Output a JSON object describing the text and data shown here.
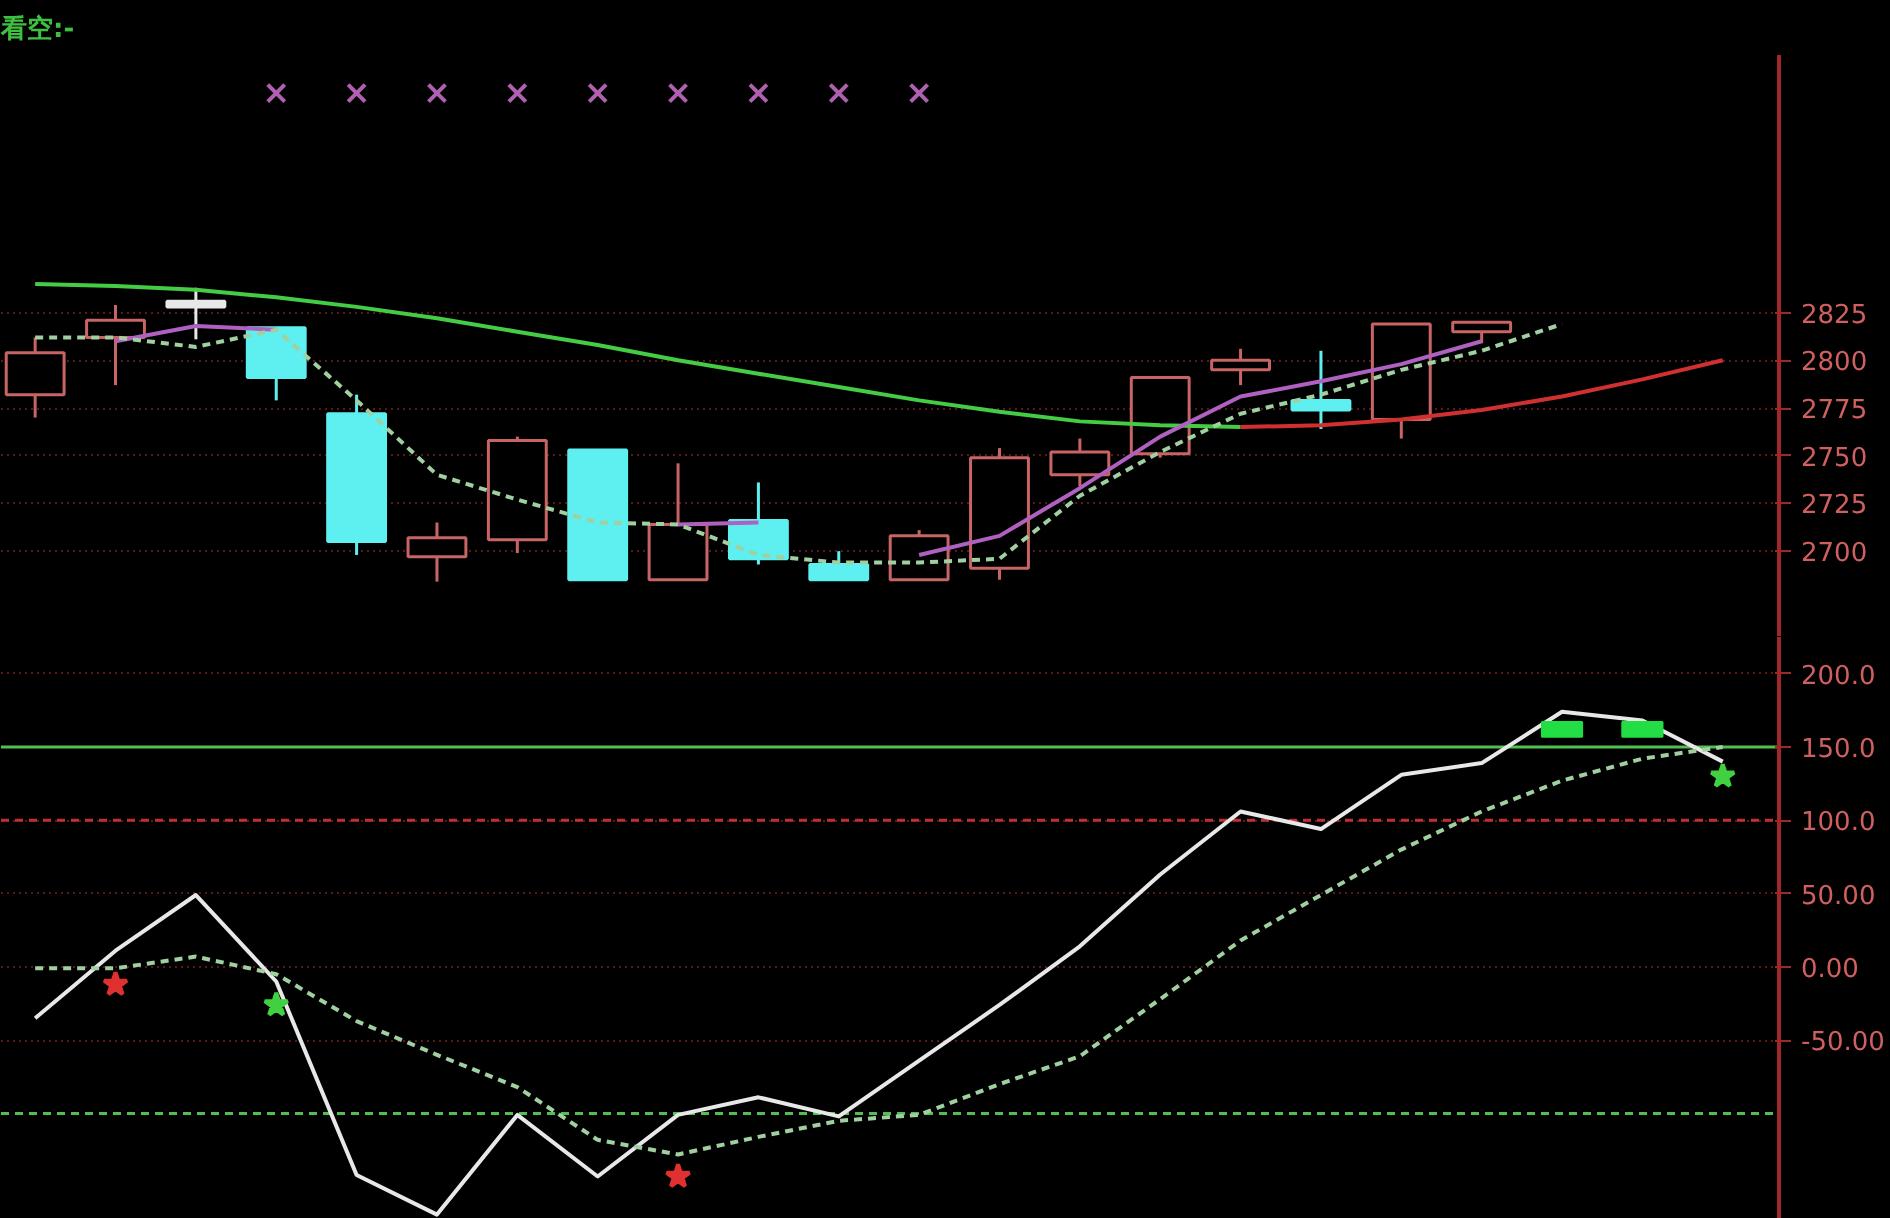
{
  "chart_data": [
    {
      "type": "candlestick",
      "title": "看空:-",
      "categories": [
        null,
        null,
        null,
        null,
        null,
        null,
        null,
        null,
        null,
        null,
        null,
        null,
        null,
        null,
        null,
        null,
        null,
        null,
        null,
        null,
        null,
        null
      ],
      "ohlc": [
        [
          2782,
          2812,
          2770,
          2804
        ],
        [
          2812,
          2829,
          2787,
          2821
        ],
        [
          2831,
          2838,
          2811,
          2828
        ],
        [
          2817,
          2817,
          2779,
          2791
        ],
        [
          2772,
          2782,
          2698,
          2705
        ],
        [
          2697,
          2715,
          2684,
          2707
        ],
        [
          2706,
          2760,
          2699,
          2758
        ],
        [
          2753,
          2753,
          2685,
          2685
        ],
        [
          2685,
          2746,
          2685,
          2714
        ],
        [
          2716,
          2736,
          2693,
          2696
        ],
        [
          2693,
          2700,
          2685,
          2685
        ],
        [
          2685,
          2711,
          2685,
          2708
        ],
        [
          2691,
          2754,
          2685,
          2749
        ],
        [
          2740,
          2759,
          2734,
          2752
        ],
        [
          2751,
          2791,
          2749,
          2791
        ],
        [
          2795,
          2806,
          2787,
          2800
        ],
        [
          2779,
          2805,
          2764,
          2774
        ],
        [
          2769,
          2819,
          2759,
          2819
        ],
        [
          2815,
          2820,
          2809,
          2820
        ],
        null,
        null,
        null
      ],
      "colors": [
        "#c86464",
        "#c86464",
        "#e8e8e8",
        "#5ef0f0",
        "#5ef0f0",
        "#c86464",
        "#c86464",
        "#5ef0f0",
        "#c86464",
        "#5ef0f0",
        "#5ef0f0",
        "#c86464",
        "#c86464",
        "#c86464",
        "#c86464",
        "#c86464",
        "#5ef0f0",
        "#c86464",
        "#c86464",
        null,
        null,
        null
      ],
      "series": [
        {
          "type": "line",
          "color": "#44cc44",
          "values": [
            2840,
            2839,
            2837,
            2833,
            2828,
            2822,
            2815,
            2808,
            2800,
            2793,
            2786,
            2779,
            2773,
            2768,
            2766,
            2765,
            null,
            null,
            null,
            null,
            null,
            null
          ]
        },
        {
          "type": "line",
          "color": "#d03030",
          "values": [
            null,
            null,
            null,
            null,
            null,
            null,
            null,
            null,
            null,
            null,
            null,
            null,
            null,
            null,
            null,
            2765,
            2766,
            2769,
            2774,
            2781,
            2790,
            2800
          ]
        },
        {
          "type": "line",
          "color": "#b060c0",
          "values": [
            null,
            2810,
            2818,
            2816,
            null,
            null,
            null,
            null,
            2714,
            2715,
            null,
            2698,
            2708,
            2733,
            2760,
            2781,
            2789,
            2798,
            2810,
            null,
            null,
            null
          ]
        },
        {
          "type": "line",
          "color": "#a0d0a0",
          "line_style": "dashed",
          "values": [
            2812,
            2812,
            2807,
            2816,
            2779,
            2740,
            2727,
            2715,
            2714,
            2698,
            2694,
            2694,
            2696,
            2729,
            2752,
            2772,
            2782,
            2795,
            2805,
            2819,
            null,
            null
          ]
        },
        {
          "type": "scatter",
          "marker": "cross",
          "color": "#b060b0",
          "values": [
            null,
            null,
            null,
            2940,
            2940,
            2940,
            2940,
            2940,
            2940,
            2940,
            2940,
            2940,
            null,
            null,
            null,
            null,
            null,
            null,
            null,
            null,
            null,
            null
          ]
        }
      ],
      "ylim": [
        2655,
        2960
      ],
      "yticks": [
        2700,
        2725,
        2750,
        2775,
        2800,
        2825
      ],
      "grid": "y"
    },
    {
      "type": "line",
      "categories": [
        null,
        null,
        null,
        null,
        null,
        null,
        null,
        null,
        null,
        null,
        null,
        null,
        null,
        null,
        null,
        null,
        null,
        null,
        null,
        null,
        null,
        null
      ],
      "series": [
        {
          "type": "line",
          "color": "#e8e8e8",
          "values": [
            -35,
            11,
            49,
            -10,
            -142,
            -169,
            -101,
            -143,
            -101,
            -89,
            -102,
            -64,
            -26,
            14,
            63,
            106,
            94,
            131,
            139,
            174,
            168,
            140
          ]
        },
        {
          "type": "line",
          "color": "#a0d0a0",
          "line_style": "dashed",
          "values": [
            -1,
            -1,
            7,
            -5,
            -37,
            -60,
            -82,
            -118,
            -128,
            -116,
            -105,
            -101,
            -80,
            -61,
            -22,
            18,
            49,
            80,
            106,
            127,
            142,
            150
          ]
        },
        {
          "type": "scatter",
          "marker": "star",
          "color": "#e03030",
          "values": [
            null,
            -12,
            null,
            null,
            null,
            null,
            null,
            null,
            -143,
            null,
            null,
            null,
            null,
            null,
            null,
            null,
            null,
            null,
            null,
            null,
            null,
            null
          ]
        },
        {
          "type": "scatter",
          "marker": "star",
          "color": "#40d040",
          "values": [
            null,
            null,
            null,
            -26,
            null,
            null,
            null,
            null,
            null,
            null,
            null,
            null,
            null,
            null,
            null,
            null,
            null,
            null,
            null,
            null,
            null,
            130
          ]
        },
        {
          "type": "bar",
          "color": "#22dd44",
          "base": [
            null,
            null,
            null,
            null,
            null,
            null,
            null,
            null,
            null,
            null,
            null,
            null,
            null,
            null,
            null,
            null,
            null,
            null,
            null,
            157,
            157,
            null
          ],
          "values": [
            null,
            null,
            null,
            null,
            null,
            null,
            null,
            null,
            null,
            null,
            null,
            null,
            null,
            null,
            null,
            null,
            null,
            null,
            null,
            10,
            10,
            null
          ]
        }
      ],
      "ref_lines": [
        {
          "axis": "y",
          "value": 150,
          "color": "#50c050",
          "line_style": "solid"
        },
        {
          "axis": "y",
          "value": 100,
          "color": "#c03030",
          "line_style": "dashed"
        },
        {
          "axis": "y",
          "value": -100,
          "color": "#50c050",
          "line_style": "dashed"
        }
      ],
      "ylim": [
        -172,
        225
      ],
      "yticks": [
        {
          "value": 200,
          "label": "200.0"
        },
        {
          "value": 150,
          "label": "150.0"
        },
        {
          "value": 100,
          "label": "100.0"
        },
        {
          "value": 50,
          "label": "50.00"
        },
        {
          "value": 0,
          "label": "0.00"
        },
        {
          "value": -50,
          "label": "-50.00"
        }
      ],
      "grid": "y"
    }
  ]
}
